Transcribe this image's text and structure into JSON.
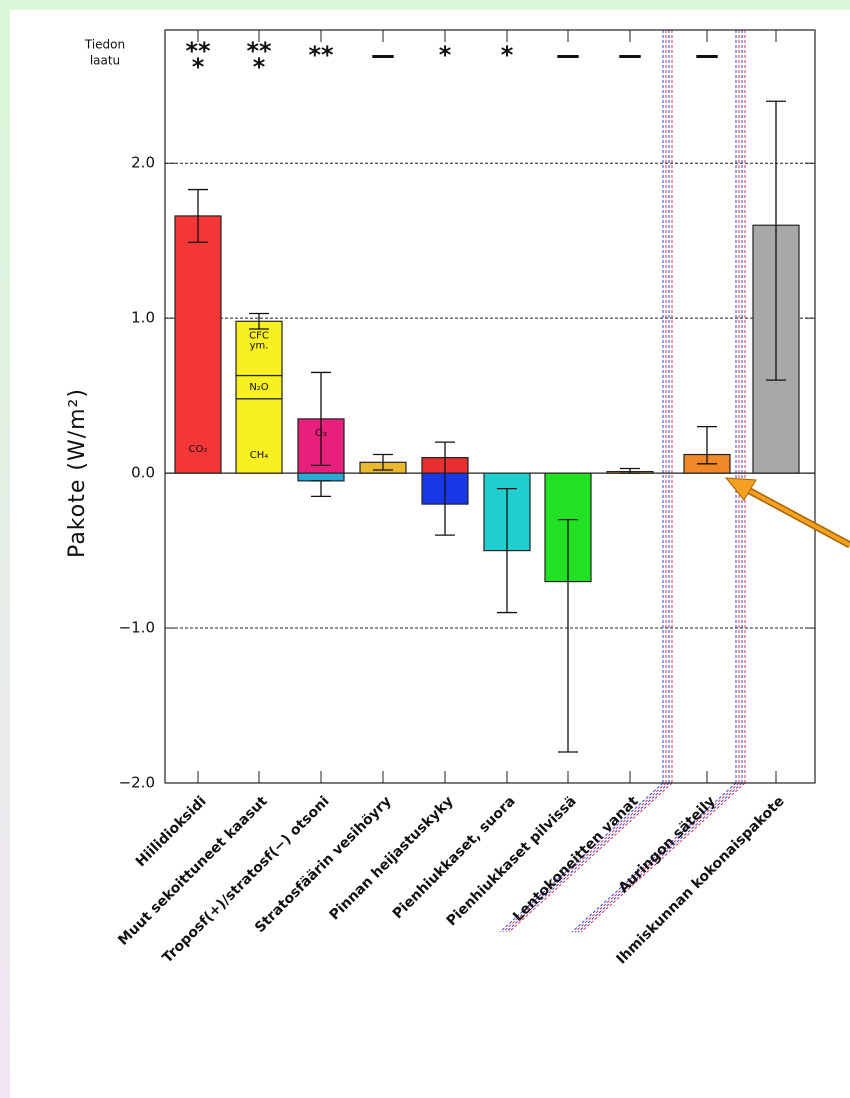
{
  "chart_data": {
    "type": "bar",
    "ylabel": "Pakote (W/m²)",
    "quality_title": [
      "Tiedon",
      "laatu"
    ],
    "ylim": [
      -2.0,
      2.86
    ],
    "yticks": [
      {
        "value": -2,
        "label": "−2.0"
      },
      {
        "value": -1,
        "label": "−1.0"
      },
      {
        "value": 0,
        "label": "0.0"
      },
      {
        "value": 1,
        "label": "1.0"
      },
      {
        "value": 2,
        "label": "2.0"
      }
    ],
    "grid": true,
    "categories": [
      {
        "label": "Hiilidioksidi",
        "quality": [
          "**",
          "*"
        ],
        "segments": [
          {
            "value": 1.66,
            "color": "#f43636",
            "label": [
              "CO₂"
            ]
          }
        ],
        "errors": [
          [
            1.49,
            1.83
          ]
        ]
      },
      {
        "label": "Muut sekoittuneet kaasut",
        "quality": [
          "**",
          "*"
        ],
        "segments": [
          {
            "value": 0.48,
            "color": "#f8f020",
            "label": [
              "CH₄"
            ]
          },
          {
            "value": 0.15,
            "color": "#f8f020",
            "label": [
              "N₂O"
            ]
          },
          {
            "value": 0.35,
            "color": "#f8f020",
            "label": [
              "CFC",
              "ym."
            ]
          }
        ],
        "errors": [
          [
            0.93,
            1.03
          ]
        ]
      },
      {
        "label": "Troposf(+)/stratosf(−) otsoni",
        "quality": [
          "**"
        ],
        "segments": [
          {
            "value": 0.35,
            "color": "#e8207c",
            "label": [
              "O₃"
            ]
          },
          {
            "value": -0.05,
            "color": "#2aa8d8"
          }
        ],
        "errors": [
          [
            0.05,
            0.65
          ],
          [
            -0.15,
            -0.05
          ]
        ]
      },
      {
        "label": "Stratosfäärin vesihöyry",
        "quality": [
          "—"
        ],
        "segments": [
          {
            "value": 0.07,
            "color": "#e8b830"
          }
        ],
        "errors": [
          [
            0.02,
            0.12
          ]
        ]
      },
      {
        "label": "Pinnan heijastuskyky",
        "quality": [
          "*"
        ],
        "segments": [
          {
            "value": 0.1,
            "color": "#e83030"
          },
          {
            "value": -0.2,
            "color": "#1838e8"
          }
        ],
        "errors": [
          [
            -0.4,
            0.2
          ]
        ]
      },
      {
        "label": "Pienhiukkaset, suora",
        "quality": [
          "*"
        ],
        "segments": [
          {
            "value": -0.5,
            "color": "#20d0d0"
          }
        ],
        "errors": [
          [
            -0.9,
            -0.1
          ]
        ]
      },
      {
        "label": "Pienhiukkaset pilvissä",
        "quality": [
          "—"
        ],
        "segments": [
          {
            "value": -0.7,
            "color": "#22e022"
          }
        ],
        "errors": [
          [
            -1.8,
            -0.3
          ]
        ]
      },
      {
        "label": "Lentokoneitten vanat",
        "quality": [
          "—"
        ],
        "segments": [
          {
            "value": 0.01,
            "color": "#e8b830"
          }
        ],
        "errors": [
          [
            0.0,
            0.03
          ]
        ]
      },
      {
        "label": "Auringon säteily",
        "quality": [
          "—"
        ],
        "segments": [
          {
            "value": 0.12,
            "color": "#f08828"
          }
        ],
        "errors": [
          [
            0.06,
            0.3
          ]
        ]
      },
      {
        "label": "Ihmiskunnan kokonaispakote",
        "quality": [],
        "segments": [
          {
            "value": 1.6,
            "color": "#a8a8a8"
          }
        ],
        "errors": [
          [
            0.6,
            2.4
          ]
        ]
      }
    ]
  }
}
